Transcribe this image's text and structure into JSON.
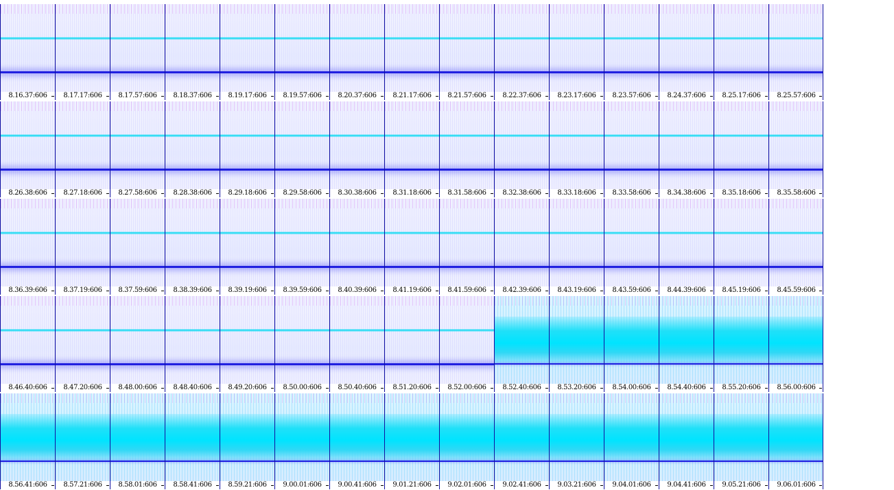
{
  "rows": [
    [
      "8.16.37:606",
      "8.17.17:606",
      "8.17.57:606",
      "8.18.37:606",
      "8.19.17:606",
      "8.19.57:606",
      "8.20.37:606",
      "8.21.17:606",
      "8.21.57:606",
      "8.22.37:606",
      "8.23.17:606",
      "8.23.57:606",
      "8.24.37:606",
      "8.25.17:606",
      "8.25.57:606"
    ],
    [
      "8.26.38:606",
      "8.27.18:606",
      "8.27.58:606",
      "8.28.38:606",
      "8.29.18:606",
      "8.29.58:606",
      "8.30.38:606",
      "8.31.18:606",
      "8.31.58:606",
      "8.32.38:606",
      "8.33.18:606",
      "8.33.58:606",
      "8.34.38:606",
      "8.35.18:606",
      "8.35.58:606"
    ],
    [
      "8.36.39:606",
      "8.37.19:606",
      "8.37.59:606",
      "8.38.39:606",
      "8.39.19:606",
      "8.39.59:606",
      "8.40.39:606",
      "8.41.19:606",
      "8.41.59:606",
      "8.42.39:606",
      "8.43.19:606",
      "8.43.59:606",
      "8.44.39:606",
      "8.45.19:606",
      "8.45.59:606"
    ],
    [
      "8.46.40:606",
      "8.47.20:606",
      "8.48.00:606",
      "8.48.40:606",
      "8.49.20:606",
      "8.50.00:606",
      "8.50.40:606",
      "8.51.20:606",
      "8.52.00:606",
      "8.52.40:606",
      "8.53.20:606",
      "8.54.00:606",
      "8.54.40:606",
      "8.55.20:606",
      "8.56.00:606"
    ],
    [
      "8.56.41:606",
      "8.57.21:606",
      "8.58.01:606",
      "8.58.41:606",
      "8.59.21:606",
      "9.00.01:606",
      "9.00.41:606",
      "9.01.21:606",
      "9.02.01:606",
      "9.02.41:606",
      "9.03.21:606",
      "9.04.01:606",
      "9.04.41:606",
      "9.05.21:606",
      "9.06.01:606"
    ]
  ],
  "wide_band_start": {
    "row": 3,
    "col": 9
  },
  "colors": {
    "frame": "#1010a0",
    "narrow_band": "#10d8f0",
    "low_band": "#2020e0",
    "wide_band": "#00e4ff",
    "top_noise": "#c83ce6"
  }
}
